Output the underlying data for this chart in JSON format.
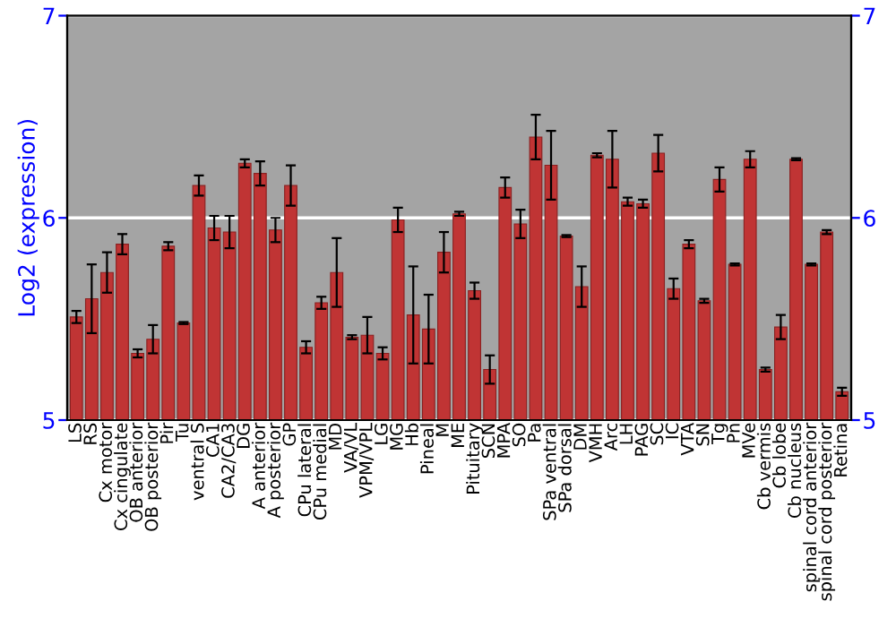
{
  "chart_data": {
    "type": "bar",
    "ylabel": "Log2 (expression)",
    "categories": [
      "LS",
      "RS",
      "Cx motor",
      "Cx cingulate",
      "OB anterior",
      "OB posterior",
      "Pir",
      "Tu",
      "ventral S",
      "CA1",
      "CA2/CA3",
      "DG",
      "A anterior",
      "A posterior",
      "GP",
      "CPu lateral",
      "CPu medial",
      "MD",
      "VA/VL",
      "VPM/VPL",
      "LG",
      "MG",
      "Hb",
      "Pineal",
      "M",
      "ME",
      "Pituitary",
      "SCN",
      "MPA",
      "SO",
      "Pa",
      "SPa ventral",
      "SPa dorsal",
      "DM",
      "VMH",
      "Arc",
      "LH",
      "PAG",
      "SC",
      "IC",
      "VTA",
      "SN",
      "Tg",
      "Pn",
      "MVe",
      "Cb vermis",
      "Cb lobe",
      "Cb nucleus",
      "spinal cord anterior",
      "spinal cord posterior",
      "Retina"
    ],
    "values": [
      5.51,
      5.6,
      5.73,
      5.87,
      5.33,
      5.4,
      5.86,
      5.48,
      6.16,
      5.95,
      5.93,
      6.27,
      6.22,
      5.94,
      6.16,
      5.36,
      5.58,
      5.73,
      5.41,
      5.42,
      5.33,
      5.99,
      5.52,
      5.45,
      5.83,
      6.02,
      5.64,
      5.25,
      6.15,
      5.97,
      6.4,
      6.26,
      5.91,
      5.66,
      6.31,
      6.29,
      6.08,
      6.07,
      6.32,
      5.65,
      5.87,
      5.59,
      6.19,
      5.77,
      6.29,
      5.25,
      5.46,
      6.29,
      5.77,
      5.93,
      5.14
    ],
    "errors": [
      0.03,
      0.17,
      0.1,
      0.05,
      0.02,
      0.07,
      0.02,
      0.005,
      0.05,
      0.06,
      0.08,
      0.02,
      0.06,
      0.06,
      0.1,
      0.03,
      0.03,
      0.17,
      0.01,
      0.09,
      0.03,
      0.06,
      0.24,
      0.17,
      0.1,
      0.01,
      0.04,
      0.07,
      0.05,
      0.07,
      0.11,
      0.17,
      0.005,
      0.1,
      0.01,
      0.14,
      0.02,
      0.02,
      0.09,
      0.05,
      0.02,
      0.01,
      0.06,
      0.005,
      0.04,
      0.01,
      0.06,
      0.005,
      0.005,
      0.01,
      0.02
    ],
    "color": "#c03434",
    "ylim": [
      5,
      7
    ],
    "yticks": [
      5,
      6,
      7
    ],
    "y2lim": [
      5,
      7
    ],
    "y2ticks": [
      5,
      6,
      7
    ],
    "grid": "y"
  }
}
